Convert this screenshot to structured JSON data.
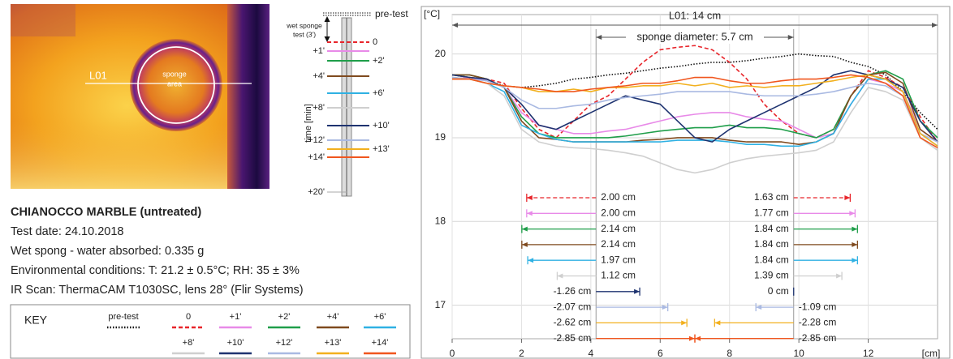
{
  "image": {
    "line_label": "L01",
    "sponge_label": [
      "sponge",
      "area"
    ]
  },
  "timeline": {
    "pre_label": "pre-test",
    "wet_label": [
      "wet sponge",
      "test (3')"
    ],
    "end_label": "+20'",
    "axis_label": "time [min]"
  },
  "info": {
    "title": "CHIANOCCO MARBLE (untreated)",
    "lines": [
      "Test date: 24.10.2018",
      "Wet spong - water absorbed: 0.335 g",
      "Environmental conditions: T: 21.2 ± 0.5°C; RH: 35 ± 3%",
      "IR Scan: ThermaCAM T1030SC, lens 28°  (Flir Systems)"
    ]
  },
  "key": {
    "title": "KEY"
  },
  "chart_data": {
    "type": "line",
    "y_label": "[°C]",
    "x_label": "[cm]",
    "xlim": [
      0,
      14
    ],
    "xticks": [
      0,
      2,
      4,
      6,
      8,
      10,
      12
    ],
    "ylim": [
      16.6,
      20.47
    ],
    "yticks": [
      17,
      18,
      19,
      20
    ],
    "grid": true,
    "length": {
      "value": 14,
      "label": "L01: 14 cm"
    },
    "sponge_diameter": {
      "value": 5.7,
      "label": "sponge diameter: 5.7 cm"
    },
    "x": [
      0,
      0.5,
      1,
      1.5,
      2,
      2.5,
      3,
      3.5,
      4,
      4.5,
      5,
      5.5,
      6,
      6.5,
      7,
      7.5,
      8,
      8.5,
      9,
      9.5,
      10,
      10.5,
      11,
      11.5,
      12,
      12.5,
      13,
      13.5,
      14
    ],
    "series": [
      {
        "name": "pre-test",
        "color": "#111111",
        "dash": "dotted",
        "values": [
          19.75,
          19.72,
          19.68,
          19.62,
          19.6,
          19.62,
          19.65,
          19.7,
          19.72,
          19.75,
          19.77,
          19.8,
          19.83,
          19.85,
          19.88,
          19.9,
          19.9,
          19.92,
          19.95,
          19.97,
          20.0,
          19.98,
          19.97,
          19.9,
          19.85,
          19.75,
          19.55,
          19.3,
          19.1
        ]
      },
      {
        "name": "0",
        "color": "#e8252b",
        "dash": "dashed",
        "values": [
          19.7,
          19.72,
          19.7,
          19.65,
          19.35,
          19.1,
          19.0,
          19.2,
          19.4,
          19.5,
          19.7,
          19.9,
          20.05,
          20.08,
          20.1,
          20.05,
          19.9,
          19.7,
          19.4,
          19.2,
          19.05,
          19.0,
          19.1,
          19.5,
          19.8,
          19.72,
          19.6,
          19.25,
          18.95
        ]
      },
      {
        "name": "+1'",
        "color": "#e88ae8",
        "dash": "solid",
        "values": [
          19.7,
          19.72,
          19.68,
          19.6,
          19.3,
          19.15,
          19.1,
          19.05,
          19.05,
          19.08,
          19.1,
          19.15,
          19.2,
          19.25,
          19.28,
          19.3,
          19.3,
          19.25,
          19.22,
          19.2,
          19.1,
          19.0,
          19.05,
          19.4,
          19.7,
          19.65,
          19.55,
          19.1,
          18.95
        ]
      },
      {
        "name": "+2'",
        "color": "#1f9e4a",
        "dash": "solid",
        "values": [
          19.75,
          19.75,
          19.7,
          19.6,
          19.25,
          19.05,
          19.0,
          19.0,
          19.0,
          19.0,
          19.02,
          19.05,
          19.08,
          19.1,
          19.12,
          19.12,
          19.15,
          19.12,
          19.12,
          19.1,
          19.05,
          19.0,
          19.1,
          19.5,
          19.75,
          19.8,
          19.7,
          19.2,
          19.0
        ]
      },
      {
        "name": "+4'",
        "color": "#7f4a1e",
        "dash": "solid",
        "values": [
          19.75,
          19.75,
          19.7,
          19.6,
          19.2,
          19.0,
          18.98,
          18.95,
          18.95,
          18.95,
          18.95,
          18.97,
          18.98,
          19.0,
          19.0,
          19.0,
          18.97,
          18.95,
          18.95,
          18.95,
          18.92,
          18.95,
          19.05,
          19.5,
          19.75,
          19.78,
          19.65,
          19.1,
          18.95
        ]
      },
      {
        "name": "+6'",
        "color": "#2fb1e3",
        "dash": "solid",
        "values": [
          19.72,
          19.7,
          19.65,
          19.55,
          19.15,
          19.05,
          18.98,
          18.95,
          18.95,
          18.95,
          18.95,
          18.95,
          18.95,
          18.97,
          18.97,
          18.97,
          18.95,
          18.92,
          18.92,
          18.9,
          18.9,
          18.95,
          19.05,
          19.4,
          19.7,
          19.7,
          19.55,
          19.05,
          18.9
        ]
      },
      {
        "name": "+8'",
        "color": "#cfcfcf",
        "dash": "solid",
        "values": [
          19.7,
          19.7,
          19.65,
          19.5,
          19.1,
          18.95,
          18.9,
          18.88,
          18.87,
          18.85,
          18.82,
          18.78,
          18.7,
          18.62,
          18.58,
          18.62,
          18.7,
          18.75,
          18.78,
          18.8,
          18.82,
          18.85,
          18.95,
          19.3,
          19.6,
          19.55,
          19.45,
          19.0,
          18.85
        ]
      },
      {
        "name": "+10'",
        "color": "#1e3370",
        "dash": "solid",
        "values": [
          19.75,
          19.72,
          19.7,
          19.6,
          19.4,
          19.15,
          19.1,
          19.2,
          19.3,
          19.4,
          19.5,
          19.45,
          19.4,
          19.2,
          19.0,
          18.95,
          19.1,
          19.2,
          19.3,
          19.4,
          19.5,
          19.6,
          19.75,
          19.8,
          19.75,
          19.7,
          19.6,
          19.2,
          18.95
        ]
      },
      {
        "name": "+12'",
        "color": "#a9b9e2",
        "dash": "solid",
        "values": [
          19.72,
          19.7,
          19.68,
          19.6,
          19.45,
          19.35,
          19.35,
          19.38,
          19.4,
          19.45,
          19.48,
          19.5,
          19.52,
          19.55,
          19.55,
          19.55,
          19.55,
          19.52,
          19.5,
          19.5,
          19.5,
          19.52,
          19.55,
          19.6,
          19.65,
          19.62,
          19.5,
          19.05,
          18.95
        ]
      },
      {
        "name": "+13'",
        "color": "#f2b01e",
        "dash": "solid",
        "values": [
          19.7,
          19.7,
          19.65,
          19.62,
          19.6,
          19.55,
          19.55,
          19.58,
          19.55,
          19.6,
          19.6,
          19.62,
          19.62,
          19.65,
          19.62,
          19.65,
          19.6,
          19.62,
          19.6,
          19.62,
          19.62,
          19.65,
          19.68,
          19.72,
          19.75,
          19.7,
          19.55,
          19.05,
          18.9
        ]
      },
      {
        "name": "+14'",
        "color": "#f0561e",
        "dash": "solid",
        "values": [
          19.7,
          19.7,
          19.65,
          19.62,
          19.6,
          19.58,
          19.55,
          19.55,
          19.58,
          19.6,
          19.62,
          19.65,
          19.65,
          19.68,
          19.72,
          19.72,
          19.68,
          19.65,
          19.65,
          19.68,
          19.7,
          19.7,
          19.72,
          19.75,
          19.72,
          19.65,
          19.5,
          19.0,
          18.88
        ]
      }
    ],
    "distance_rows": [
      {
        "left": {
          "value": 2.0,
          "label": "2.00 cm"
        },
        "right": {
          "value": 1.63,
          "label": "1.63 cm"
        }
      },
      {
        "left": {
          "value": 2.0,
          "label": "2.00 cm"
        },
        "right": {
          "value": 1.77,
          "label": "1.77 cm"
        }
      },
      {
        "left": {
          "value": 2.14,
          "label": "2.14 cm"
        },
        "right": {
          "value": 1.84,
          "label": "1.84 cm"
        }
      },
      {
        "left": {
          "value": 2.14,
          "label": "2.14 cm"
        },
        "right": {
          "value": 1.84,
          "label": "1.84 cm"
        }
      },
      {
        "left": {
          "value": 1.97,
          "label": "1.97 cm"
        },
        "right": {
          "value": 1.84,
          "label": "1.84 cm"
        }
      },
      {
        "left": {
          "value": 1.12,
          "label": "1.12 cm"
        },
        "right": {
          "value": 1.39,
          "label": "1.39 cm"
        }
      },
      {
        "left": {
          "value": -1.26,
          "label": "-1.26 cm"
        },
        "right": {
          "value": 0,
          "label": "0 cm"
        }
      },
      {
        "left": {
          "value": -2.07,
          "label": "-2.07 cm"
        },
        "right": {
          "value": -1.09,
          "label": "-1.09 cm"
        }
      },
      {
        "left": {
          "value": -2.62,
          "label": "-2.62 cm"
        },
        "right": {
          "value": -2.28,
          "label": "-2.28 cm"
        }
      },
      {
        "left": {
          "value": -2.85,
          "label": "-2.85 cm"
        },
        "right": {
          "value": -2.85,
          "label": "-2.85 cm"
        }
      }
    ]
  }
}
